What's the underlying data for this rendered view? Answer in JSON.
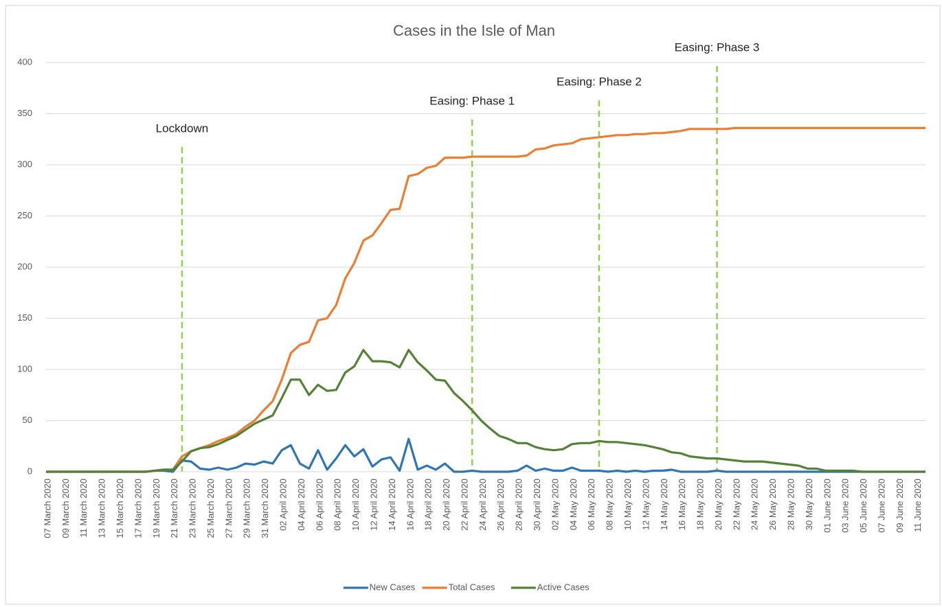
{
  "chart_data": {
    "type": "line",
    "title": "Cases in the Isle of Man",
    "categories": [
      "07 March 2020",
      null,
      "09 March 2020",
      null,
      "11 March 2020",
      null,
      "13 March 2020",
      null,
      "15 March 2020",
      null,
      "17 March 2020",
      null,
      "19 March 2020",
      null,
      "21 March 2020",
      null,
      "23 March 2020",
      null,
      "25 March 2020",
      null,
      "27 March 2020",
      null,
      "29 March 2020",
      null,
      "31 March 2020",
      null,
      "02 April 2020",
      null,
      "04 April 2020",
      null,
      "06 April 2020",
      null,
      "08 April 2020",
      null,
      "10 April 2020",
      null,
      "12 April 2020",
      null,
      "14 April 2020",
      null,
      "16 April 2020",
      null,
      "18 April 2020",
      null,
      "20 April 2020",
      null,
      "22 April 2020",
      null,
      "24 April 2020",
      null,
      "26 April 2020",
      null,
      "28 April 2020",
      null,
      "30 April 2020",
      null,
      "02 May 2020",
      null,
      "04 May 2020",
      null,
      "06 May 2020",
      null,
      "08 May 2020",
      null,
      "10 May 2020",
      null,
      "12 May 2020",
      null,
      "14 May 2020",
      null,
      "16 May 2020",
      null,
      "18 May 2020",
      null,
      "20 May 2020",
      null,
      "22 May 2020",
      null,
      "24 May 2020",
      null,
      "26 May 2020",
      null,
      "28 May 2020",
      null,
      "30 May 2020",
      null,
      "01 June 2020",
      null,
      "03 June 2020",
      null,
      "05 June 2020",
      null,
      "07 June 2020",
      null,
      "09 June 2020",
      null,
      "11 June 2020",
      null
    ],
    "series": [
      {
        "name": "New Cases",
        "color": "#2e75b6",
        "values": [
          0,
          0,
          0,
          0,
          0,
          0,
          0,
          0,
          0,
          0,
          0,
          0,
          1,
          1,
          0,
          11,
          10,
          3,
          2,
          4,
          2,
          4,
          8,
          7,
          10,
          8,
          21,
          26,
          8,
          3,
          21,
          2,
          13,
          26,
          15,
          22,
          5,
          12,
          14,
          1,
          32,
          2,
          6,
          2,
          8,
          0,
          0,
          1,
          0,
          0,
          0,
          0,
          1,
          6,
          1,
          3,
          1,
          1,
          4,
          1,
          1,
          1,
          0,
          1,
          0,
          1,
          0,
          1,
          1,
          2,
          0,
          0,
          0,
          0,
          1,
          0,
          0,
          0,
          0,
          0,
          0,
          0,
          0,
          0,
          0,
          0,
          0,
          0,
          0,
          0,
          0,
          0,
          0,
          0,
          0,
          0,
          0,
          0
        ]
      },
      {
        "name": "Total Cases",
        "color": "#ed7d31",
        "values": [
          0,
          0,
          0,
          0,
          0,
          0,
          0,
          0,
          0,
          0,
          0,
          0,
          1,
          2,
          2,
          15,
          20,
          23,
          26,
          30,
          33,
          37,
          44,
          50,
          60,
          69,
          90,
          116,
          124,
          127,
          148,
          150,
          163,
          189,
          204,
          226,
          231,
          243,
          256,
          257,
          289,
          291,
          297,
          299,
          307,
          307,
          307,
          308,
          308,
          308,
          308,
          308,
          308,
          309,
          315,
          316,
          319,
          320,
          321,
          325,
          326,
          327,
          328,
          329,
          329,
          330,
          330,
          331,
          331,
          332,
          333,
          335,
          335,
          335,
          335,
          335,
          336,
          336,
          336,
          336,
          336,
          336,
          336,
          336,
          336,
          336,
          336,
          336,
          336,
          336,
          336,
          336,
          336,
          336,
          336,
          336,
          336,
          336
        ]
      },
      {
        "name": "Active Cases",
        "color": "#548235",
        "values": [
          0,
          0,
          0,
          0,
          0,
          0,
          0,
          0,
          0,
          0,
          0,
          0,
          1,
          2,
          2,
          10,
          20,
          23,
          24,
          27,
          31,
          35,
          41,
          47,
          51,
          55,
          72,
          90,
          90,
          75,
          85,
          79,
          80,
          97,
          103,
          119,
          108,
          108,
          107,
          102,
          119,
          107,
          99,
          90,
          89,
          77,
          69,
          60,
          50,
          42,
          35,
          32,
          28,
          28,
          24,
          22,
          21,
          22,
          27,
          28,
          28,
          30,
          29,
          29,
          28,
          27,
          26,
          24,
          22,
          19,
          18,
          15,
          14,
          13,
          13,
          12,
          11,
          10,
          10,
          10,
          9,
          8,
          7,
          6,
          3,
          3,
          1,
          1,
          1,
          1,
          0,
          0,
          0,
          0,
          0,
          0,
          0,
          0
        ]
      }
    ],
    "ylim": [
      0,
      400
    ],
    "yticks": [
      0,
      50,
      100,
      150,
      200,
      250,
      300,
      350,
      400
    ],
    "grid": true,
    "legend": "bottom",
    "annotations": [
      {
        "text": "Lockdown",
        "index": 15,
        "color": "#92d050"
      },
      {
        "text": "Easing: Phase 1",
        "index": 47,
        "color": "#92d050"
      },
      {
        "text": "Easing: Phase 2",
        "index": 61,
        "color": "#92d050"
      },
      {
        "text": "Easing: Phase 3",
        "index": 74,
        "color": "#92d050"
      }
    ]
  }
}
